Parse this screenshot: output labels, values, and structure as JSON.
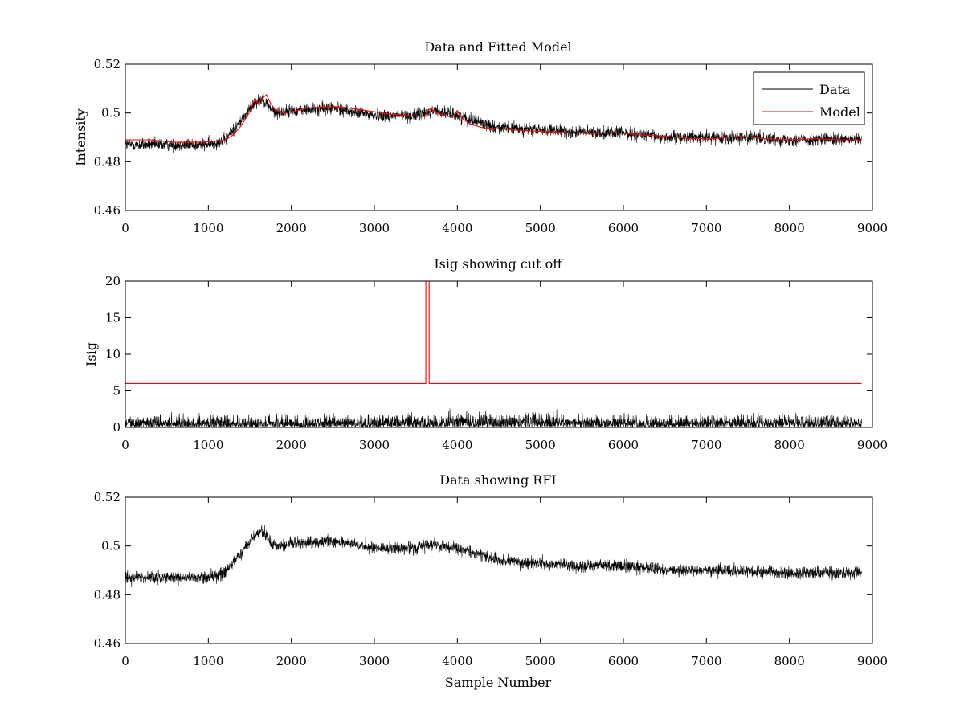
{
  "chart_data": [
    {
      "type": "line",
      "title": "Data and Fitted Model",
      "xlabel": "",
      "ylabel": "Intensity",
      "xlim": [
        0,
        9000
      ],
      "ylim": [
        0.46,
        0.52
      ],
      "xticks": [
        "0",
        "1000",
        "2000",
        "3000",
        "4000",
        "5000",
        "6000",
        "7000",
        "8000",
        "9000"
      ],
      "yticks": [
        "0.46",
        "0.48",
        "0.5",
        "0.52"
      ],
      "legend": {
        "position": "top-right",
        "entries": [
          "Data",
          "Model"
        ]
      },
      "series": [
        {
          "name": "Data",
          "color": "#000000",
          "style": "noisy",
          "baseline": {
            "x": [
              0,
              500,
              1000,
              1200,
              1400,
              1550,
              1650,
              1800,
              2000,
              2500,
              3000,
              3500,
              3700,
              4000,
              4500,
              5000,
              5500,
              6000,
              6500,
              7000,
              7500,
              8000,
              8500,
              8870
            ],
            "y": [
              0.487,
              0.487,
              0.487,
              0.489,
              0.497,
              0.504,
              0.506,
              0.5,
              0.501,
              0.502,
              0.499,
              0.499,
              0.501,
              0.499,
              0.494,
              0.493,
              0.492,
              0.492,
              0.49,
              0.49,
              0.49,
              0.489,
              0.489,
              0.489
            ]
          },
          "noise_amplitude": 0.0045
        },
        {
          "name": "Model",
          "color": "#ff0000",
          "x": [
            0,
            300,
            600,
            900,
            1100,
            1200,
            1300,
            1400,
            1500,
            1560,
            1600,
            1650,
            1700,
            1750,
            1800,
            1900,
            2000,
            2200,
            2400,
            2600,
            2800,
            3000,
            3200,
            3400,
            3600,
            3650,
            3680,
            3720,
            3800,
            3900,
            3950,
            4000,
            4050,
            4150,
            4300,
            4500,
            4700,
            5000,
            5300,
            5600,
            5900,
            6200,
            6500,
            6800,
            7100,
            7400,
            7700,
            8000,
            8300,
            8600,
            8870
          ],
          "y": [
            0.489,
            0.489,
            0.488,
            0.488,
            0.4885,
            0.489,
            0.491,
            0.495,
            0.5005,
            0.506,
            0.504,
            0.506,
            0.5075,
            0.504,
            0.5015,
            0.5,
            0.5005,
            0.502,
            0.5025,
            0.5025,
            0.5015,
            0.5005,
            0.4995,
            0.499,
            0.4985,
            0.501,
            0.502,
            0.5005,
            0.4995,
            0.4985,
            0.499,
            0.501,
            0.498,
            0.4955,
            0.494,
            0.4935,
            0.493,
            0.4925,
            0.492,
            0.4915,
            0.492,
            0.491,
            0.4905,
            0.4895,
            0.4895,
            0.4905,
            0.4895,
            0.489,
            0.4895,
            0.489,
            0.489
          ]
        }
      ]
    },
    {
      "type": "line",
      "title": "Isig showing cut off",
      "xlabel": "",
      "ylabel": "Isig",
      "xlim": [
        0,
        9000
      ],
      "ylim": [
        0,
        20
      ],
      "xticks": [
        "0",
        "1000",
        "2000",
        "3000",
        "4000",
        "5000",
        "6000",
        "7000",
        "8000",
        "9000"
      ],
      "yticks": [
        "0",
        "5",
        "10",
        "15",
        "20"
      ],
      "series": [
        {
          "color": "#000000",
          "style": "noisy-positive",
          "baseline": {
            "x": [
              0,
              8870
            ],
            "y": [
              0,
              0
            ]
          },
          "noise_amplitude": 3.2
        },
        {
          "color": "#ff0000",
          "x": [
            0,
            3620,
            3620,
            3660,
            3660,
            8870
          ],
          "y": [
            6,
            6,
            20,
            20,
            6,
            6
          ]
        }
      ]
    },
    {
      "type": "line",
      "title": "Data showing RFI",
      "xlabel": "Sample Number",
      "ylabel": "",
      "xlim": [
        0,
        9000
      ],
      "ylim": [
        0.46,
        0.52
      ],
      "xticks": [
        "0",
        "1000",
        "2000",
        "3000",
        "4000",
        "5000",
        "6000",
        "7000",
        "8000",
        "9000"
      ],
      "yticks": [
        "0.46",
        "0.48",
        "0.5",
        "0.52"
      ],
      "series": [
        {
          "color": "#000000",
          "style": "noisy",
          "baseline": {
            "x": [
              0,
              500,
              1000,
              1200,
              1400,
              1550,
              1650,
              1800,
              2000,
              2500,
              3000,
              3500,
              3700,
              4000,
              4500,
              5000,
              5500,
              6000,
              6500,
              7000,
              7500,
              8000,
              8500,
              8870
            ],
            "y": [
              0.487,
              0.487,
              0.487,
              0.489,
              0.497,
              0.504,
              0.506,
              0.5,
              0.501,
              0.502,
              0.499,
              0.499,
              0.501,
              0.499,
              0.494,
              0.493,
              0.492,
              0.492,
              0.49,
              0.49,
              0.49,
              0.489,
              0.489,
              0.489
            ]
          },
          "noise_amplitude": 0.0045
        }
      ]
    }
  ]
}
